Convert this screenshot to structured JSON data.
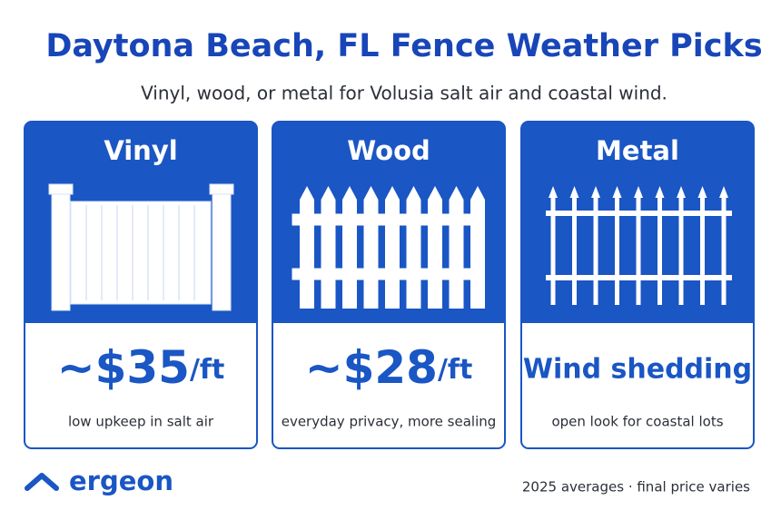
{
  "header": {
    "title": "Daytona Beach, FL Fence Weather Picks",
    "subtitle": "Vinyl, wood, or metal for Volusia salt air and coastal wind."
  },
  "cards": [
    {
      "name": "Vinyl",
      "price": "~$35",
      "unit": "/ft",
      "description": "low upkeep in salt air"
    },
    {
      "name": "Wood",
      "price": "~$28",
      "unit": "/ft",
      "description": "everyday privacy, more sealing"
    },
    {
      "name": "Metal",
      "headline": "Wind shedding",
      "description": "open look for coastal lots"
    }
  ],
  "footer": {
    "brand": "ergeon",
    "note": "2025 averages · final price varies"
  }
}
